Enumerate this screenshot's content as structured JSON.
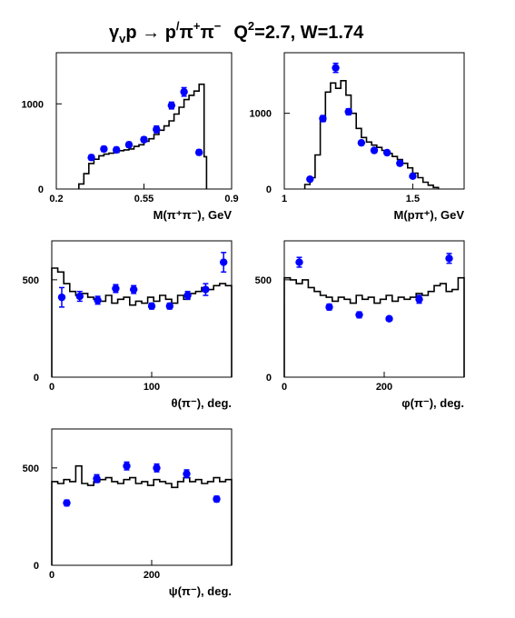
{
  "title": "γ_v p → p′π⁺π⁻   Q²=2.7, W=1.74",
  "title_parts": {
    "gamma": "γ",
    "gamma_sub": "v",
    "reaction": "p → p",
    "prime": "/",
    "pi1": "π",
    "pi1_sup": "+",
    "pi2": "π",
    "pi2_sup": "−",
    "q": "Q",
    "q_sup": "2",
    "kin": "=2.7, W=1.74"
  },
  "colors": {
    "points": "#0000ff",
    "histogram": "#000000",
    "frame": "#000000"
  },
  "chart_data": [
    {
      "type": "scatter",
      "name": "m_pipi",
      "xlabel": "M(π⁺π⁻), GeV",
      "xlim": [
        0.2,
        0.9
      ],
      "ylim": [
        0,
        1600
      ],
      "xticks": [
        0.2,
        0.55,
        0.9
      ],
      "xtick_labels": [
        "0.2",
        "0.55",
        "0.9"
      ],
      "yticks": [
        0,
        1000
      ],
      "ytick_labels": [
        "0",
        "1000"
      ],
      "histogram": {
        "edges": [
          0.29,
          0.31,
          0.33,
          0.35,
          0.37,
          0.39,
          0.41,
          0.43,
          0.45,
          0.47,
          0.49,
          0.51,
          0.53,
          0.55,
          0.57,
          0.59,
          0.61,
          0.63,
          0.65,
          0.67,
          0.69,
          0.71,
          0.73,
          0.75,
          0.77,
          0.79,
          0.8
        ],
        "values": [
          60,
          180,
          300,
          350,
          390,
          410,
          420,
          430,
          450,
          460,
          470,
          500,
          520,
          560,
          590,
          640,
          690,
          740,
          800,
          880,
          960,
          1050,
          1100,
          1150,
          1230,
          380
        ]
      },
      "points": {
        "x": [
          0.34,
          0.39,
          0.44,
          0.49,
          0.55,
          0.6,
          0.66,
          0.71,
          0.77
        ],
        "y": [
          370,
          470,
          460,
          520,
          580,
          700,
          980,
          1140,
          430
        ],
        "err": [
          30,
          30,
          30,
          30,
          30,
          40,
          40,
          50,
          30
        ]
      }
    },
    {
      "type": "scatter",
      "name": "m_ppi",
      "xlabel": "M(pπ⁺), GeV",
      "xlim": [
        1.0,
        1.7
      ],
      "ylim": [
        0,
        1800
      ],
      "xticks": [
        1.0,
        1.5
      ],
      "xtick_labels": [
        "1",
        "1.5"
      ],
      "yticks": [
        0,
        1000
      ],
      "ytick_labels": [
        "0",
        "1000"
      ],
      "histogram": {
        "edges": [
          1.08,
          1.1,
          1.12,
          1.14,
          1.16,
          1.18,
          1.2,
          1.22,
          1.24,
          1.26,
          1.28,
          1.3,
          1.32,
          1.34,
          1.36,
          1.38,
          1.4,
          1.42,
          1.44,
          1.46,
          1.48,
          1.5,
          1.52,
          1.54,
          1.56,
          1.58,
          1.6
        ],
        "values": [
          60,
          150,
          450,
          900,
          1280,
          1400,
          1330,
          1430,
          1240,
          1000,
          800,
          680,
          620,
          580,
          550,
          510,
          470,
          430,
          390,
          340,
          280,
          210,
          150,
          90,
          50,
          20
        ]
      },
      "points": {
        "x": [
          1.1,
          1.15,
          1.2,
          1.25,
          1.3,
          1.35,
          1.4,
          1.45,
          1.5
        ],
        "y": [
          130,
          930,
          1600,
          1020,
          610,
          510,
          480,
          340,
          170
        ],
        "err": [
          20,
          40,
          60,
          40,
          30,
          30,
          30,
          30,
          20
        ]
      }
    },
    {
      "type": "scatter",
      "name": "theta",
      "xlabel": "θ(π⁻), deg.",
      "xlim": [
        0,
        180
      ],
      "ylim": [
        0,
        700
      ],
      "xticks": [
        0,
        100
      ],
      "xtick_labels": [
        "0",
        "100"
      ],
      "yticks": [
        0,
        500
      ],
      "ytick_labels": [
        "0",
        "500"
      ],
      "histogram": {
        "edges": [
          0,
          6,
          12,
          18,
          24,
          30,
          36,
          42,
          48,
          54,
          60,
          66,
          72,
          78,
          84,
          90,
          96,
          102,
          108,
          114,
          120,
          126,
          132,
          138,
          144,
          150,
          156,
          162,
          168,
          174,
          180
        ],
        "values": [
          560,
          540,
          480,
          440,
          420,
          430,
          410,
          400,
          390,
          420,
          380,
          400,
          410,
          370,
          390,
          380,
          410,
          390,
          420,
          400,
          380,
          420,
          400,
          430,
          440,
          460,
          450,
          470,
          480,
          470
        ]
      },
      "points": {
        "x": [
          10,
          28,
          46,
          64,
          82,
          100,
          118,
          136,
          154,
          172
        ],
        "y": [
          410,
          415,
          395,
          455,
          450,
          365,
          365,
          420,
          450,
          590
        ],
        "err": [
          50,
          25,
          20,
          20,
          20,
          15,
          15,
          20,
          30,
          50
        ]
      }
    },
    {
      "type": "scatter",
      "name": "phi",
      "xlabel": "φ(π⁻), deg.",
      "xlim": [
        0,
        360
      ],
      "ylim": [
        0,
        700
      ],
      "xticks": [
        0,
        200
      ],
      "xtick_labels": [
        "0",
        "200"
      ],
      "yticks": [
        0,
        500
      ],
      "ytick_labels": [
        "0",
        "500"
      ],
      "histogram": {
        "edges": [
          0,
          12,
          24,
          36,
          48,
          60,
          72,
          84,
          96,
          108,
          120,
          132,
          144,
          156,
          168,
          180,
          192,
          204,
          216,
          228,
          240,
          252,
          264,
          276,
          288,
          300,
          312,
          324,
          336,
          348,
          360
        ],
        "values": [
          510,
          500,
          480,
          500,
          460,
          440,
          420,
          410,
          390,
          410,
          400,
          380,
          420,
          400,
          410,
          380,
          400,
          420,
          390,
          410,
          400,
          410,
          430,
          420,
          440,
          470,
          480,
          440,
          450,
          510
        ]
      },
      "points": {
        "x": [
          30,
          90,
          150,
          210,
          270,
          330
        ],
        "y": [
          590,
          360,
          320,
          300,
          400,
          610
        ],
        "err": [
          25,
          15,
          15,
          10,
          20,
          25
        ]
      }
    },
    {
      "type": "scatter",
      "name": "psi",
      "xlabel": "ψ(π⁻), deg.",
      "xlim": [
        0,
        360
      ],
      "ylim": [
        0,
        700
      ],
      "xticks": [
        0,
        200
      ],
      "xtick_labels": [
        "0",
        "200"
      ],
      "yticks": [
        0,
        500
      ],
      "ytick_labels": [
        "0",
        "500"
      ],
      "histogram": {
        "edges": [
          0,
          12,
          24,
          36,
          48,
          60,
          72,
          84,
          96,
          108,
          120,
          132,
          144,
          156,
          168,
          180,
          192,
          204,
          216,
          228,
          240,
          252,
          264,
          276,
          288,
          300,
          312,
          324,
          336,
          348,
          360
        ],
        "values": [
          430,
          420,
          440,
          430,
          510,
          420,
          410,
          430,
          440,
          450,
          430,
          420,
          440,
          450,
          420,
          430,
          410,
          440,
          430,
          420,
          400,
          430,
          450,
          430,
          440,
          420,
          430,
          450,
          430,
          440
        ]
      },
      "points": {
        "x": [
          30,
          90,
          150,
          210,
          270,
          330
        ],
        "y": [
          320,
          445,
          510,
          500,
          470,
          340
        ],
        "err": [
          15,
          20,
          20,
          20,
          20,
          15
        ]
      }
    }
  ]
}
